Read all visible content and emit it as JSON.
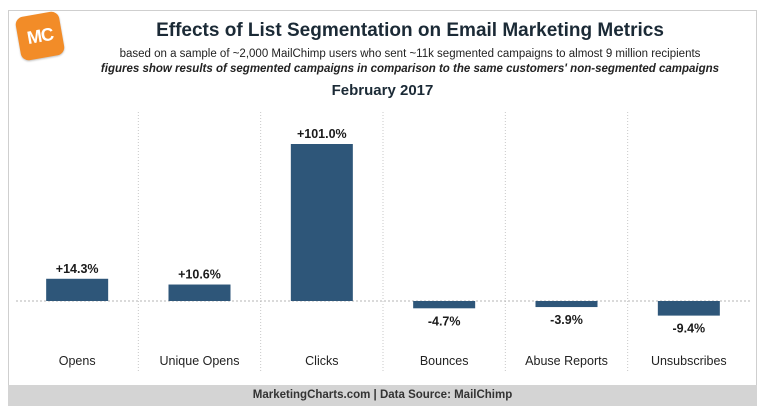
{
  "logo": {
    "text": "MC",
    "color": "#f28c28"
  },
  "title": "Effects of List Segmentation on Email Marketing Metrics",
  "subtitle": "based on a sample of ~2,000 MailChimp users who sent ~11k segmented campaigns to almost 9 million recipients",
  "note": "figures show results of segmented campaigns in comparison to the same customers' non-segmented campaigns",
  "date": "February 2017",
  "footer": "MarketingCharts.com | Data Source: MailChimp",
  "chart_data": {
    "type": "bar",
    "categories": [
      "Opens",
      "Unique Opens",
      "Clicks",
      "Bounces",
      "Abuse Reports",
      "Unsubscribes"
    ],
    "values": [
      14.3,
      10.6,
      101.0,
      -4.7,
      -3.9,
      -9.4
    ],
    "data_labels": [
      "+14.3%",
      "+10.6%",
      "+101.0%",
      "-4.7%",
      "-3.9%",
      "-9.4%"
    ],
    "unit": "%",
    "ylim": [
      -12,
      120
    ],
    "bar_color": "#2e5679",
    "grid": false,
    "legend": "none"
  }
}
